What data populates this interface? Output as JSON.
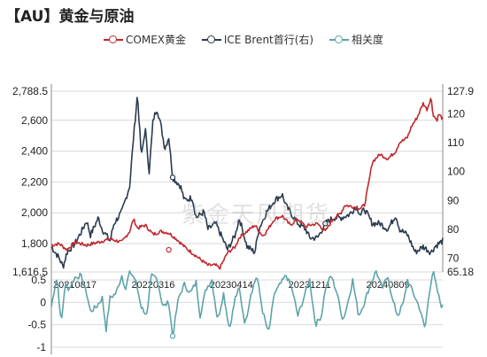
{
  "title": "【AU】黄金与原油",
  "watermark": "紫金天风期货",
  "colors": {
    "gold": "#c0282d",
    "brent": "#2b3a4e",
    "corr": "#5ea3a9",
    "grid": "#d9d9d9"
  },
  "chart_data": [
    {
      "type": "line",
      "title": "【AU】黄金与原油",
      "legend_position": "top",
      "x_tick_labels": [
        "20210817",
        "20220316",
        "20230414",
        "20231211",
        "20240809"
      ],
      "left_axis": {
        "ticks": [
          "2,788.5",
          "2,600",
          "2,400",
          "2,200",
          "2,000",
          "1,800",
          "1,616.5"
        ],
        "range": [
          1616.5,
          2788.5
        ]
      },
      "right_axis": {
        "ticks": [
          "127.9",
          "120",
          "110",
          "100",
          "90",
          "80",
          "70",
          "65.18"
        ],
        "range": [
          65.18,
          127.9
        ]
      },
      "series": [
        {
          "name": "COMEX黄金",
          "axis": "left",
          "anchors": [
            [
              0,
              1790
            ],
            [
              0.02,
              1800
            ],
            [
              0.04,
              1760
            ],
            [
              0.06,
              1810
            ],
            [
              0.09,
              1790
            ],
            [
              0.12,
              1810
            ],
            [
              0.15,
              1830
            ],
            [
              0.18,
              1810
            ],
            [
              0.2,
              1880
            ],
            [
              0.21,
              1960
            ],
            [
              0.22,
              1900
            ],
            [
              0.24,
              1920
            ],
            [
              0.26,
              1860
            ],
            [
              0.28,
              1880
            ],
            [
              0.3,
              1870
            ],
            [
              0.32,
              1830
            ],
            [
              0.34,
              1780
            ],
            [
              0.36,
              1740
            ],
            [
              0.38,
              1700
            ],
            [
              0.4,
              1660
            ],
            [
              0.42,
              1660
            ],
            [
              0.43,
              1640
            ],
            [
              0.45,
              1740
            ],
            [
              0.47,
              1780
            ],
            [
              0.48,
              1840
            ],
            [
              0.5,
              1880
            ],
            [
              0.52,
              1920
            ],
            [
              0.54,
              1850
            ],
            [
              0.55,
              1880
            ],
            [
              0.57,
              1960
            ],
            [
              0.59,
              1980
            ],
            [
              0.61,
              1920
            ],
            [
              0.63,
              1960
            ],
            [
              0.65,
              1910
            ],
            [
              0.66,
              1920
            ],
            [
              0.68,
              1930
            ],
            [
              0.7,
              1880
            ],
            [
              0.72,
              1960
            ],
            [
              0.74,
              2000
            ],
            [
              0.75,
              2050
            ],
            [
              0.77,
              2040
            ],
            [
              0.79,
              2030
            ],
            [
              0.8,
              2050
            ],
            [
              0.81,
              2180
            ],
            [
              0.82,
              2330
            ],
            [
              0.84,
              2380
            ],
            [
              0.86,
              2350
            ],
            [
              0.88,
              2400
            ],
            [
              0.89,
              2460
            ],
            [
              0.9,
              2470
            ],
            [
              0.91,
              2490
            ],
            [
              0.92,
              2560
            ],
            [
              0.935,
              2620
            ],
            [
              0.95,
              2710
            ],
            [
              0.96,
              2670
            ],
            [
              0.97,
              2750
            ],
            [
              0.975,
              2640
            ],
            [
              0.985,
              2600
            ],
            [
              0.99,
              2640
            ],
            [
              1,
              2610
            ]
          ]
        },
        {
          "name": "ICE Brent首行(右)",
          "axis": "right",
          "anchors": [
            [
              0,
              74
            ],
            [
              0.02,
              70
            ],
            [
              0.03,
              67
            ],
            [
              0.04,
              72
            ],
            [
              0.06,
              75
            ],
            [
              0.08,
              80
            ],
            [
              0.09,
              83
            ],
            [
              0.1,
              78
            ],
            [
              0.12,
              84
            ],
            [
              0.13,
              80
            ],
            [
              0.15,
              76
            ],
            [
              0.16,
              82
            ],
            [
              0.18,
              86
            ],
            [
              0.2,
              95
            ],
            [
              0.21,
              112
            ],
            [
              0.22,
              127
            ],
            [
              0.23,
              105
            ],
            [
              0.24,
              115
            ],
            [
              0.25,
              100
            ],
            [
              0.26,
              118
            ],
            [
              0.27,
              122
            ],
            [
              0.28,
              116
            ],
            [
              0.29,
              108
            ],
            [
              0.3,
              112
            ],
            [
              0.31,
              98
            ],
            [
              0.33,
              95
            ],
            [
              0.34,
              90
            ],
            [
              0.36,
              91
            ],
            [
              0.37,
              84
            ],
            [
              0.39,
              86
            ],
            [
              0.4,
              80
            ],
            [
              0.42,
              82
            ],
            [
              0.43,
              79
            ],
            [
              0.45,
              73
            ],
            [
              0.47,
              78
            ],
            [
              0.48,
              84
            ],
            [
              0.5,
              74
            ],
            [
              0.52,
              72
            ],
            [
              0.53,
              80
            ],
            [
              0.55,
              86
            ],
            [
              0.57,
              90
            ],
            [
              0.59,
              92
            ],
            [
              0.6,
              88
            ],
            [
              0.62,
              84
            ],
            [
              0.63,
              82
            ],
            [
              0.65,
              80
            ],
            [
              0.66,
              77
            ],
            [
              0.68,
              77
            ],
            [
              0.7,
              82
            ],
            [
              0.72,
              84
            ],
            [
              0.74,
              84
            ],
            [
              0.76,
              85
            ],
            [
              0.78,
              88
            ],
            [
              0.79,
              85
            ],
            [
              0.8,
              87
            ],
            [
              0.82,
              82
            ],
            [
              0.84,
              82
            ],
            [
              0.86,
              80
            ],
            [
              0.88,
              85
            ],
            [
              0.89,
              80
            ],
            [
              0.91,
              78
            ],
            [
              0.93,
              72
            ],
            [
              0.95,
              74
            ],
            [
              0.97,
              72
            ],
            [
              0.98,
              74
            ],
            [
              1,
              76
            ]
          ]
        },
        {
          "name": "相关度",
          "axis": "corr",
          "anchors": [
            [
              0,
              -0.1
            ],
            [
              0.01,
              0.4
            ],
            [
              0.015,
              0.55
            ],
            [
              0.025,
              -0.5
            ],
            [
              0.035,
              0.4
            ],
            [
              0.045,
              0.3
            ],
            [
              0.06,
              0.55
            ],
            [
              0.075,
              0.6
            ],
            [
              0.09,
              0.2
            ],
            [
              0.1,
              -0.2
            ],
            [
              0.115,
              -0.1
            ],
            [
              0.13,
              0.1
            ],
            [
              0.14,
              -0.6
            ],
            [
              0.15,
              0.1
            ],
            [
              0.165,
              0.2
            ],
            [
              0.18,
              0.6
            ],
            [
              0.19,
              0.3
            ],
            [
              0.2,
              0.7
            ],
            [
              0.215,
              0.5
            ],
            [
              0.23,
              -0.1
            ],
            [
              0.245,
              -0.3
            ],
            [
              0.255,
              0.6
            ],
            [
              0.27,
              0.55
            ],
            [
              0.285,
              -0.1
            ],
            [
              0.3,
              0.0
            ],
            [
              0.31,
              -0.75
            ],
            [
              0.325,
              0.1
            ],
            [
              0.34,
              0.4
            ],
            [
              0.355,
              0.2
            ],
            [
              0.37,
              0.45
            ],
            [
              0.38,
              -0.3
            ],
            [
              0.395,
              0.3
            ],
            [
              0.41,
              0.5
            ],
            [
              0.425,
              -0.4
            ],
            [
              0.44,
              0.2
            ],
            [
              0.455,
              -0.6
            ],
            [
              0.47,
              0.1
            ],
            [
              0.48,
              0.3
            ],
            [
              0.495,
              -0.5
            ],
            [
              0.51,
              0.2
            ],
            [
              0.525,
              0.6
            ],
            [
              0.54,
              -0.2
            ],
            [
              0.555,
              -0.7
            ],
            [
              0.57,
              0.2
            ],
            [
              0.585,
              0.4
            ],
            [
              0.6,
              0.6
            ],
            [
              0.615,
              0.3
            ],
            [
              0.63,
              -0.3
            ],
            [
              0.645,
              0.1
            ],
            [
              0.66,
              0.5
            ],
            [
              0.675,
              -0.5
            ],
            [
              0.69,
              -0.3
            ],
            [
              0.7,
              0.3
            ],
            [
              0.715,
              0.6
            ],
            [
              0.73,
              0.2
            ],
            [
              0.745,
              -0.4
            ],
            [
              0.755,
              -0.1
            ],
            [
              0.77,
              0.5
            ],
            [
              0.785,
              -0.3
            ],
            [
              0.8,
              0.0
            ],
            [
              0.815,
              0.4
            ],
            [
              0.83,
              0.7
            ],
            [
              0.845,
              0.3
            ],
            [
              0.86,
              0.6
            ],
            [
              0.87,
              0.1
            ],
            [
              0.885,
              -0.3
            ],
            [
              0.9,
              0.0
            ],
            [
              0.91,
              0.5
            ],
            [
              0.925,
              0.2
            ],
            [
              0.94,
              -0.1
            ],
            [
              0.955,
              -0.6
            ],
            [
              0.965,
              0.2
            ],
            [
              0.975,
              0.7
            ],
            [
              0.985,
              0.3
            ],
            [
              0.995,
              -0.05
            ],
            [
              1,
              -0.1
            ]
          ]
        }
      ]
    },
    {
      "type": "line",
      "title": "",
      "y_axis": {
        "ticks": [
          "0.5",
          "0",
          "-0.5",
          "-1"
        ],
        "range": [
          -1,
          0.7
        ]
      },
      "series_ref": "相关度"
    }
  ]
}
